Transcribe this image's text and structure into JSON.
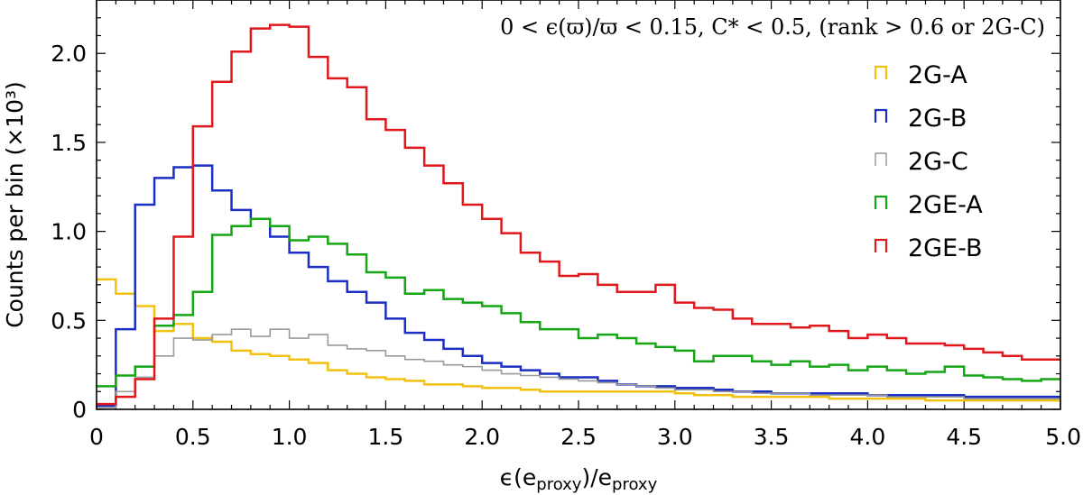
{
  "chart_data": {
    "type": "line",
    "step": true,
    "annotation": "0 < ϵ(ϖ)/ϖ < 0.15,  C* < 0.5,  (rank > 0.6 or 2G-C)",
    "xlabel": "ϵ(e_proxy)/e_proxy",
    "xlabel_parts": {
      "prefix": "ϵ(",
      "e1": "e",
      "sub1": "proxy",
      "mid": ")/",
      "e2": "e",
      "sub2": "proxy"
    },
    "ylabel": "Counts per bin (×10³)",
    "xlim": [
      0,
      5.0
    ],
    "ylim": [
      0,
      2.3
    ],
    "x_ticks": [
      "0",
      "0.5",
      "1.0",
      "1.5",
      "2.0",
      "2.5",
      "3.0",
      "3.5",
      "4.0",
      "4.5",
      "5.0"
    ],
    "x_tick_values": [
      0,
      0.5,
      1.0,
      1.5,
      2.0,
      2.5,
      3.0,
      3.5,
      4.0,
      4.5,
      5.0
    ],
    "y_ticks": [
      "0",
      "0.5",
      "1.0",
      "1.5",
      "2.0"
    ],
    "y_tick_values": [
      0,
      0.5,
      1.0,
      1.5,
      2.0
    ],
    "legend_position": "upper-right",
    "bin_start": 0,
    "bin_width": 0.1,
    "series": [
      {
        "name": "2G-A",
        "color": "#f2c10e",
        "width": 2.5,
        "values": [
          0.73,
          0.65,
          0.58,
          0.44,
          0.48,
          0.4,
          0.38,
          0.33,
          0.31,
          0.3,
          0.28,
          0.26,
          0.22,
          0.2,
          0.18,
          0.17,
          0.16,
          0.14,
          0.14,
          0.13,
          0.12,
          0.12,
          0.11,
          0.1,
          0.1,
          0.1,
          0.1,
          0.1,
          0.1,
          0.1,
          0.09,
          0.08,
          0.08,
          0.07,
          0.07,
          0.07,
          0.07,
          0.07,
          0.06,
          0.06,
          0.06,
          0.06,
          0.06,
          0.05,
          0.05,
          0.05,
          0.05,
          0.05,
          0.05,
          0.05
        ]
      },
      {
        "name": "2G-B",
        "color": "#1c2fc4",
        "width": 2.5,
        "values": [
          0.02,
          0.45,
          1.15,
          1.3,
          1.36,
          1.37,
          1.23,
          1.12,
          1.07,
          0.97,
          0.88,
          0.8,
          0.72,
          0.66,
          0.6,
          0.51,
          0.43,
          0.39,
          0.34,
          0.3,
          0.26,
          0.24,
          0.22,
          0.2,
          0.18,
          0.18,
          0.16,
          0.14,
          0.13,
          0.13,
          0.12,
          0.12,
          0.11,
          0.1,
          0.1,
          0.09,
          0.09,
          0.09,
          0.09,
          0.09,
          0.08,
          0.08,
          0.08,
          0.08,
          0.08,
          0.07,
          0.07,
          0.07,
          0.07,
          0.07
        ]
      },
      {
        "name": "2G-C",
        "color": "#9a9a9a",
        "width": 1.6,
        "values": [
          0.01,
          0.1,
          0.18,
          0.3,
          0.4,
          0.39,
          0.42,
          0.45,
          0.41,
          0.45,
          0.4,
          0.42,
          0.36,
          0.34,
          0.33,
          0.3,
          0.28,
          0.27,
          0.25,
          0.24,
          0.22,
          0.2,
          0.19,
          0.18,
          0.17,
          0.16,
          0.15,
          0.14,
          0.13,
          0.12,
          0.11,
          0.11,
          0.1,
          0.1,
          0.09,
          0.09,
          0.09,
          0.08,
          0.08,
          0.08,
          0.08,
          0.07,
          0.07,
          0.07,
          0.07,
          0.06,
          0.06,
          0.06,
          0.06,
          0.06
        ]
      },
      {
        "name": "2GE-A",
        "color": "#14a614",
        "width": 2.5,
        "values": [
          0.13,
          0.19,
          0.24,
          0.47,
          0.53,
          0.66,
          0.98,
          1.03,
          1.07,
          1.03,
          0.95,
          0.97,
          0.93,
          0.87,
          0.77,
          0.74,
          0.65,
          0.67,
          0.62,
          0.6,
          0.58,
          0.54,
          0.49,
          0.45,
          0.45,
          0.4,
          0.42,
          0.4,
          0.37,
          0.35,
          0.33,
          0.27,
          0.3,
          0.3,
          0.27,
          0.25,
          0.27,
          0.24,
          0.25,
          0.22,
          0.24,
          0.22,
          0.2,
          0.21,
          0.24,
          0.19,
          0.18,
          0.17,
          0.16,
          0.17
        ]
      },
      {
        "name": "2GE-B",
        "color": "#e0181c",
        "width": 2.5,
        "values": [
          0.03,
          0.07,
          0.17,
          0.51,
          0.97,
          1.59,
          1.84,
          2.01,
          2.14,
          2.16,
          2.15,
          1.98,
          1.86,
          1.81,
          1.63,
          1.57,
          1.47,
          1.37,
          1.27,
          1.15,
          1.07,
          0.99,
          0.88,
          0.83,
          0.75,
          0.76,
          0.7,
          0.66,
          0.66,
          0.7,
          0.6,
          0.57,
          0.56,
          0.51,
          0.48,
          0.48,
          0.46,
          0.47,
          0.44,
          0.4,
          0.42,
          0.4,
          0.37,
          0.37,
          0.36,
          0.34,
          0.32,
          0.3,
          0.28,
          0.28
        ]
      }
    ]
  }
}
